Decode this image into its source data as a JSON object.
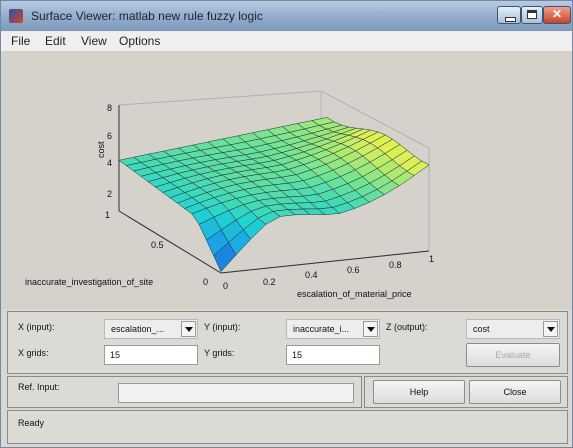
{
  "window": {
    "title": "Surface Viewer: matlab new rule fuzzy logic"
  },
  "window_controls": {
    "close_glyph": "✕"
  },
  "menu": {
    "items": [
      "File",
      "Edit",
      "View",
      "Options"
    ]
  },
  "plot": {
    "z_label": "cost",
    "x_label": "escalation_of_material_price",
    "y_label": "inaccurate_investigation_of_site",
    "z_ticks": [
      "2",
      "4",
      "6",
      "8"
    ],
    "x_ticks": [
      "0",
      "0.2",
      "0.4",
      "0.6",
      "0.8",
      "1"
    ],
    "y_ticks": [
      "0",
      "0.5",
      "1"
    ],
    "colormap": [
      "#1f62d6",
      "#1aa1e6",
      "#21d3cf",
      "#72e393",
      "#d8ef5a",
      "#fff03a"
    ]
  },
  "controls": {
    "x_input_label": "X (input):",
    "x_input_value": "escalation_...",
    "y_input_label": "Y (input):",
    "y_input_value": "inaccurate_i...",
    "z_output_label": "Z (output):",
    "z_output_value": "cost",
    "x_grids_label": "X grids:",
    "x_grids_value": "15",
    "y_grids_label": "Y grids:",
    "y_grids_value": "15",
    "evaluate_label": "Evaluate",
    "ref_input_label": "Ref. Input:",
    "ref_input_value": "",
    "help_label": "Help",
    "close_label": "Close",
    "status_text": "Ready"
  }
}
